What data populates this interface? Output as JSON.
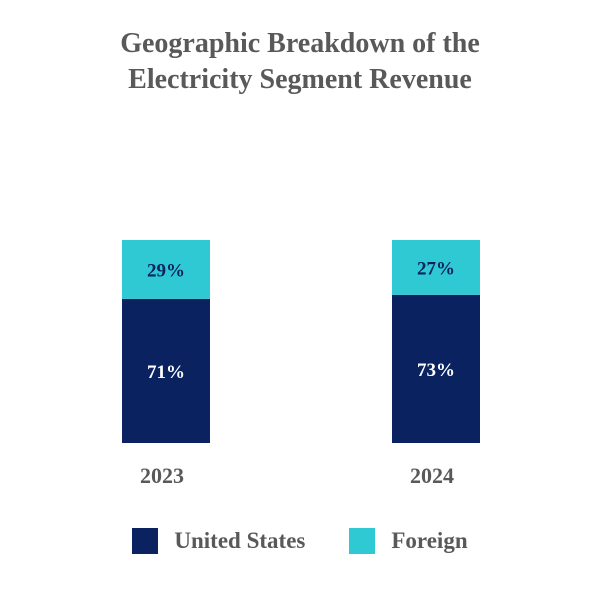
{
  "chart_data": {
    "type": "bar",
    "stacked": true,
    "title": "Geographic  Breakdown of the\nElectricity Segment Revenue",
    "categories": [
      "2023",
      "2024"
    ],
    "series": [
      {
        "name": "United States",
        "values": [
          71,
          73
        ],
        "labels": [
          "71%",
          "73%"
        ],
        "color": "#0b2260",
        "label_color": "#ffffff"
      },
      {
        "name": "Foreign",
        "values": [
          29,
          27
        ],
        "labels": [
          "29%",
          "27%"
        ],
        "color": "#2ec9d3",
        "label_color": "#0b2260"
      }
    ],
    "ylim": [
      0,
      100
    ],
    "grid": false,
    "legend": "bottom"
  }
}
